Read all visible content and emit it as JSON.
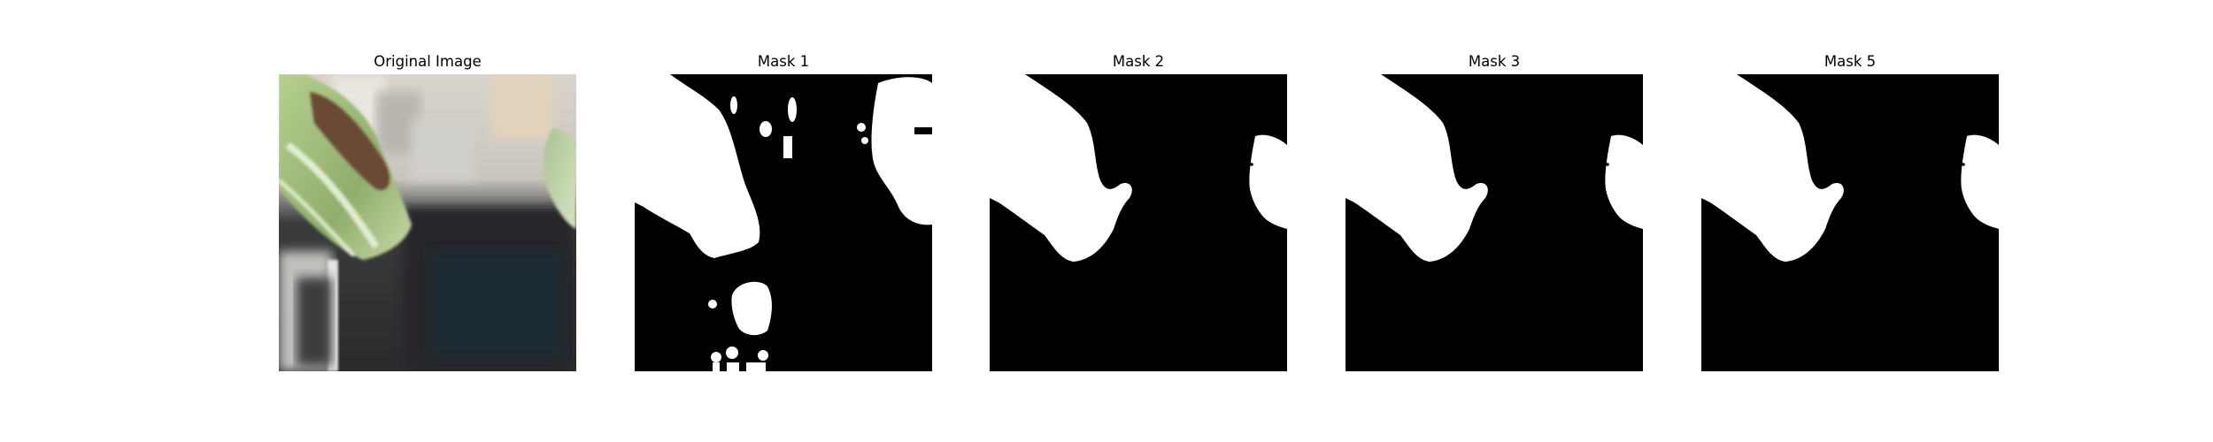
{
  "figure": {
    "panels": [
      {
        "title": "Original Image",
        "kind": "photo"
      },
      {
        "title": "Mask 1",
        "kind": "mask"
      },
      {
        "title": "Mask 2",
        "kind": "mask"
      },
      {
        "title": "Mask 3",
        "kind": "mask"
      },
      {
        "title": "Mask 5",
        "kind": "mask"
      }
    ],
    "colors": {
      "background": "#ffffff",
      "mask_background": "#000000",
      "mask_foreground": "#ffffff",
      "leaf_green": "#9fbf7a",
      "leaf_brown": "#6b4a35",
      "dark_container": "#2b2c2e"
    }
  }
}
